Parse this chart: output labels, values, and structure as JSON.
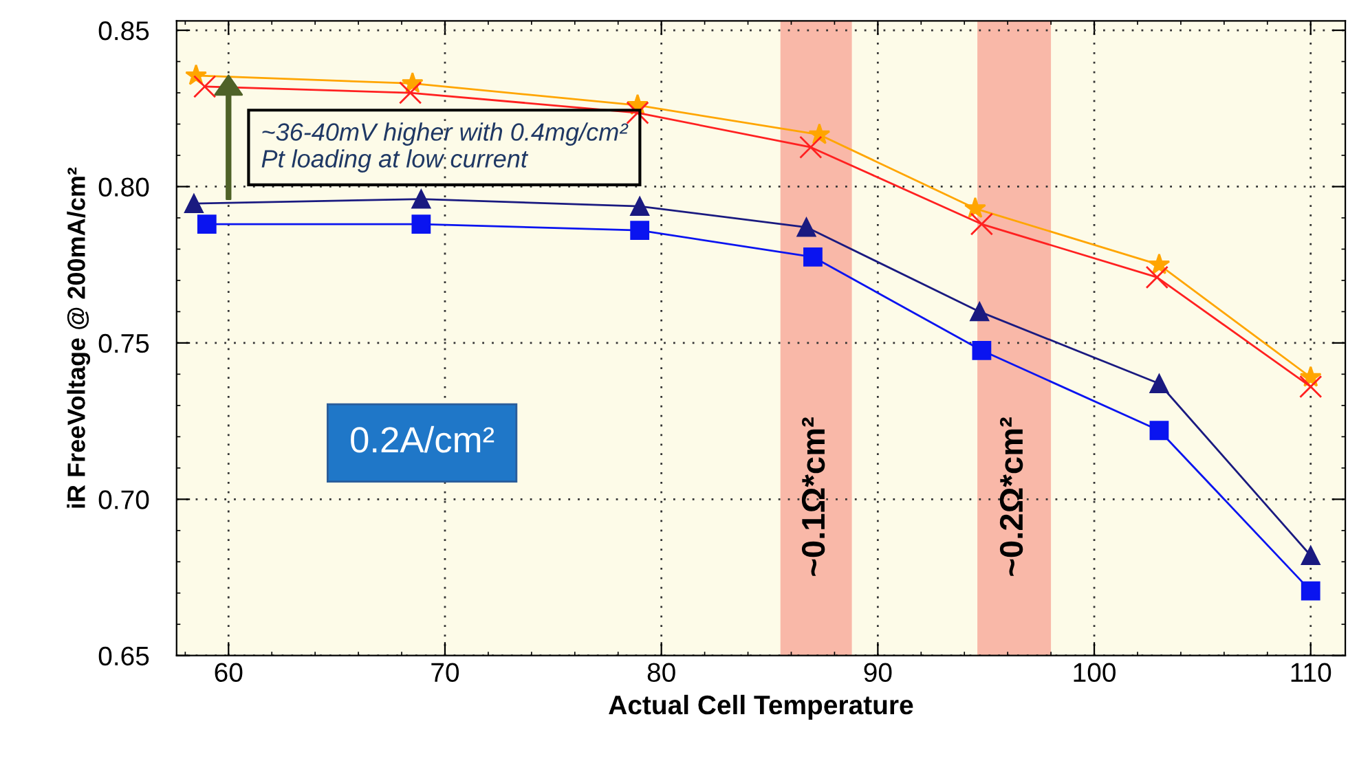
{
  "chart_data": {
    "type": "line",
    "xlabel": "Actual Cell Temperature",
    "ylabel": "iR FreeVoltage @ 200mA/cm²",
    "xlim": [
      57.6,
      111.6
    ],
    "ylim": [
      0.65,
      0.853
    ],
    "xticks": [
      60,
      70,
      80,
      90,
      100,
      110
    ],
    "yticks": [
      0.65,
      {
        "value": 0.7,
        "label": "0.70"
      },
      0.75,
      {
        "value": 0.8,
        "label": "0.80"
      },
      0.85
    ],
    "grid": true,
    "line_style": "solid",
    "series": [
      {
        "color": "#ffa500",
        "marker": "star",
        "x": [
          58.5,
          68.5,
          78.9,
          87.3,
          94.5,
          103,
          110
        ],
        "values": [
          0.8355,
          0.833,
          0.826,
          0.8166,
          0.793,
          0.775,
          0.739
        ]
      },
      {
        "color": "#ff2020",
        "marker": "cross",
        "x": [
          58.9,
          68.4,
          78.9,
          86.9,
          94.8,
          102.9,
          110
        ],
        "values": [
          0.832,
          0.83,
          0.8236,
          0.8126,
          0.788,
          0.771,
          0.736
        ]
      },
      {
        "color": "#1a1a80",
        "marker": "triangle",
        "x": [
          58.4,
          68.9,
          79,
          86.7,
          94.7,
          103,
          110
        ],
        "values": [
          0.7946,
          0.796,
          0.7937,
          0.787,
          0.76,
          0.737,
          0.682
        ]
      },
      {
        "color": "#0a14f0",
        "marker": "square",
        "x": [
          59.0,
          68.9,
          79.0,
          87.0,
          94.8,
          103,
          110
        ],
        "values": [
          0.788,
          0.788,
          0.786,
          0.7775,
          0.7476,
          0.722,
          0.6707
        ]
      }
    ],
    "bands": [
      {
        "axis": "x",
        "from": 85.5,
        "to": 88.8,
        "label": "~0.1Ω*cm²",
        "color": "#f9b8a8"
      },
      {
        "axis": "x",
        "from": 94.6,
        "to": 98.0,
        "label": "~0.2Ω*cm²",
        "color": "#f9b8a8"
      }
    ],
    "annotations": [
      {
        "text": "~36-40mV higher with 0.4mg/cm²\nPt loading at low current",
        "x": 60,
        "y": 0.8355
      },
      "0.2A/cm²"
    ]
  }
}
